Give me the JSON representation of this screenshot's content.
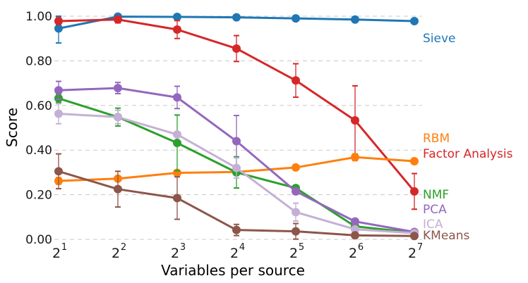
{
  "chart_data": {
    "type": "line",
    "title": "",
    "xlabel": "Variables per source",
    "ylabel": "Score",
    "x": [
      1,
      2,
      3,
      4,
      5,
      6,
      7
    ],
    "x_tick_base": "2",
    "x_tick_labels": [
      "1",
      "2",
      "3",
      "4",
      "5",
      "6",
      "7"
    ],
    "ylim": [
      0,
      1
    ],
    "y_ticks": [
      0.0,
      0.2,
      0.4,
      0.6,
      0.8,
      1.0
    ],
    "y_tick_labels": [
      "0.00",
      "0.20",
      "0.40",
      "0.60",
      "0.80",
      "1.00"
    ],
    "grid": "horizontal dashed",
    "series": [
      {
        "name": "Sieve",
        "color": "#1f77b4",
        "values": [
          0.945,
          0.998,
          0.997,
          0.995,
          0.99,
          0.985,
          0.978
        ],
        "err": [
          0.065,
          0.0,
          0.0,
          0.0,
          0.0,
          0.0,
          0.0
        ]
      },
      {
        "name": "Factor Analysis",
        "color": "#d62728",
        "values": [
          0.978,
          0.985,
          0.94,
          0.855,
          0.712,
          0.533,
          0.215
        ],
        "err": [
          0.015,
          0.015,
          0.04,
          0.058,
          0.075,
          0.155,
          0.08
        ]
      },
      {
        "name": "RBM",
        "color": "#ff7f0e",
        "values": [
          0.262,
          0.272,
          0.298,
          0.302,
          0.322,
          0.368,
          0.35
        ],
        "err": [
          0.015,
          0.0,
          0.0,
          0.0,
          0.0,
          0.015,
          0.0
        ]
      },
      {
        "name": "NMF",
        "color": "#2ca02c",
        "values": [
          0.632,
          0.548,
          0.432,
          0.3,
          0.23,
          0.058,
          0.03
        ],
        "err": [
          0.02,
          0.04,
          0.125,
          0.07,
          0.0,
          0.0,
          0.0
        ]
      },
      {
        "name": "PCA",
        "color": "#9467bd",
        "values": [
          0.668,
          0.678,
          0.636,
          0.44,
          0.215,
          0.08,
          0.033
        ],
        "err": [
          0.04,
          0.025,
          0.05,
          0.115,
          0.0,
          0.012,
          0.0
        ]
      },
      {
        "name": "ICA",
        "color": "#c5b0d5",
        "values": [
          0.563,
          0.548,
          0.47,
          0.32,
          0.122,
          0.045,
          0.028
        ],
        "err": [
          0.045,
          0.03,
          0.01,
          0.045,
          0.04,
          0.01,
          0.0
        ]
      },
      {
        "name": "KMeans",
        "color": "#8c564b",
        "values": [
          0.305,
          0.225,
          0.185,
          0.042,
          0.036,
          0.018,
          0.015
        ],
        "err": [
          0.078,
          0.08,
          0.095,
          0.025,
          0.035,
          0.0,
          0.0
        ]
      }
    ]
  }
}
